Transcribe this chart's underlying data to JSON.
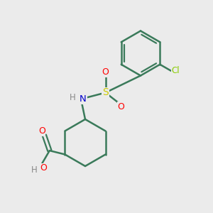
{
  "background_color": "#ebebeb",
  "bond_color": "#3a7a5a",
  "atom_colors": {
    "O": "#ff0000",
    "N": "#0000cc",
    "S": "#cccc00",
    "Cl": "#88cc00",
    "H_label": "#888888",
    "C": "#3a7a5a"
  },
  "figsize": [
    3.0,
    3.0
  ],
  "dpi": 100
}
